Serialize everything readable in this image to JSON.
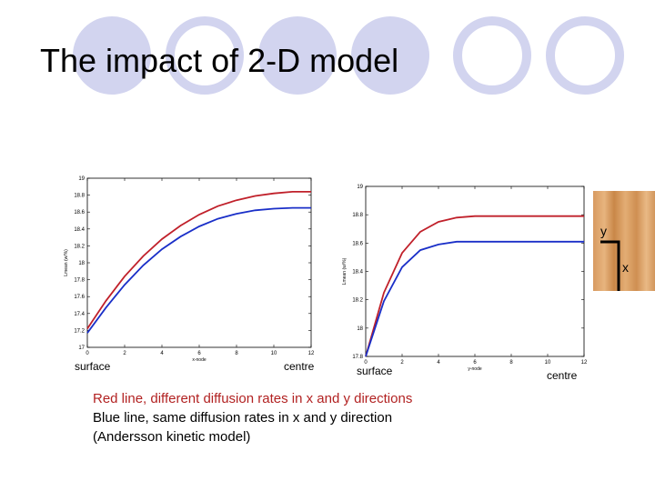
{
  "slide": {
    "title": "The impact of 2-D model",
    "caption": {
      "line1": "Red line, different diffusion rates in x and y directions",
      "line2": "Blue line, same diffusion rates in x and y direction",
      "line3": "(Andersson kinetic model)"
    },
    "inset": {
      "y_label": "y",
      "x_label": "x"
    },
    "colors": {
      "red": "#c0202a",
      "blue": "#1a2fc8",
      "deco": "#d2d4ef",
      "caption_red": "#b22222"
    }
  },
  "chart_data": [
    {
      "type": "line",
      "xlabel": "x-node",
      "ylabel": "Lmean (w/%)",
      "xlim": [
        0,
        12
      ],
      "ylim": [
        17,
        19
      ],
      "xticks": [
        0,
        2,
        4,
        6,
        8,
        10,
        12
      ],
      "yticks": [
        17,
        17.2,
        17.4,
        17.6,
        17.8,
        18,
        18.2,
        18.4,
        18.6,
        18.8,
        19
      ],
      "xtick_labels": [
        "0",
        "2",
        "4",
        "6",
        "8",
        "10",
        "12"
      ],
      "ytick_labels": [
        "17",
        "17.2",
        "17.4",
        "17.6",
        "17.8",
        "18",
        "18.2",
        "18.4",
        "18.6",
        "18.8",
        "19"
      ],
      "start_label": "surface",
      "end_label": "centre",
      "series": [
        {
          "name": "Red line, different diffusion rates in x and y directions",
          "color": "red",
          "x": [
            0,
            1,
            2,
            3,
            4,
            5,
            6,
            7,
            8,
            9,
            10,
            11,
            12
          ],
          "y": [
            17.22,
            17.55,
            17.84,
            18.08,
            18.28,
            18.44,
            18.57,
            18.67,
            18.74,
            18.79,
            18.82,
            18.84,
            18.84
          ]
        },
        {
          "name": "Blue line, same diffusion rates in x and y direction",
          "color": "blue",
          "x": [
            0,
            1,
            2,
            3,
            4,
            5,
            6,
            7,
            8,
            9,
            10,
            11,
            12
          ],
          "y": [
            17.17,
            17.47,
            17.74,
            17.97,
            18.16,
            18.31,
            18.43,
            18.52,
            18.58,
            18.62,
            18.64,
            18.65,
            18.65
          ]
        }
      ]
    },
    {
      "type": "line",
      "xlabel": "y-node",
      "ylabel": "Lmean (w/%)",
      "xlim": [
        0,
        12
      ],
      "ylim": [
        17.8,
        19
      ],
      "xticks": [
        0,
        2,
        4,
        6,
        8,
        10,
        12
      ],
      "yticks": [
        17.8,
        18,
        18.2,
        18.4,
        18.6,
        18.8,
        19
      ],
      "xtick_labels": [
        "0",
        "2",
        "4",
        "6",
        "8",
        "10",
        "12"
      ],
      "ytick_labels": [
        "17.8",
        "18",
        "18.2",
        "18.4",
        "18.6",
        "18.8",
        "19"
      ],
      "start_label": "surface",
      "end_label": "centre",
      "series": [
        {
          "name": "Red line, different diffusion rates in x and y directions",
          "color": "red",
          "x": [
            0,
            1,
            2,
            3,
            4,
            5,
            6,
            7,
            8,
            9,
            10,
            11,
            12
          ],
          "y": [
            17.8,
            18.25,
            18.53,
            18.68,
            18.75,
            18.78,
            18.79,
            18.79,
            18.79,
            18.79,
            18.79,
            18.79,
            18.79
          ]
        },
        {
          "name": "Blue line, same diffusion rates in x and y direction",
          "color": "blue",
          "x": [
            0,
            1,
            2,
            3,
            4,
            5,
            6,
            7,
            8,
            9,
            10,
            11,
            12
          ],
          "y": [
            17.8,
            18.19,
            18.43,
            18.55,
            18.59,
            18.61,
            18.61,
            18.61,
            18.61,
            18.61,
            18.61,
            18.61,
            18.61
          ]
        }
      ]
    }
  ]
}
